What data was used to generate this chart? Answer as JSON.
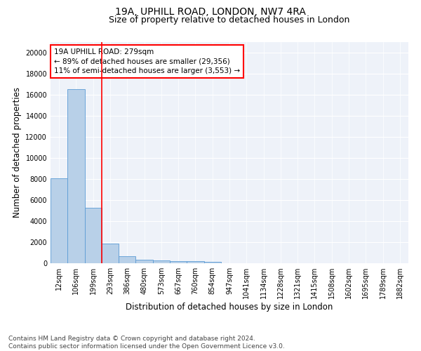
{
  "title": "19A, UPHILL ROAD, LONDON, NW7 4RA",
  "subtitle": "Size of property relative to detached houses in London",
  "xlabel": "Distribution of detached houses by size in London",
  "ylabel": "Number of detached properties",
  "categories": [
    "12sqm",
    "106sqm",
    "199sqm",
    "293sqm",
    "386sqm",
    "480sqm",
    "573sqm",
    "667sqm",
    "760sqm",
    "854sqm",
    "947sqm",
    "1041sqm",
    "1134sqm",
    "1228sqm",
    "1321sqm",
    "1415sqm",
    "1508sqm",
    "1602sqm",
    "1695sqm",
    "1789sqm",
    "1882sqm"
  ],
  "values": [
    8100,
    16500,
    5300,
    1850,
    650,
    340,
    275,
    220,
    190,
    160,
    0,
    0,
    0,
    0,
    0,
    0,
    0,
    0,
    0,
    0,
    0
  ],
  "bar_color": "#b8d0e8",
  "bar_edge_color": "#5b9bd5",
  "vline_x": 2.5,
  "vline_color": "red",
  "annotation_line1": "19A UPHILL ROAD: 279sqm",
  "annotation_line2": "← 89% of detached houses are smaller (29,356)",
  "annotation_line3": "11% of semi-detached houses are larger (3,553) →",
  "ylim": [
    0,
    21000
  ],
  "yticks": [
    0,
    2000,
    4000,
    6000,
    8000,
    10000,
    12000,
    14000,
    16000,
    18000,
    20000
  ],
  "footnote": "Contains HM Land Registry data © Crown copyright and database right 2024.\nContains public sector information licensed under the Open Government Licence v3.0.",
  "background_color": "#eef2f9",
  "grid_color": "#ffffff",
  "title_fontsize": 10,
  "subtitle_fontsize": 9,
  "axis_label_fontsize": 8.5,
  "tick_fontsize": 7,
  "annotation_fontsize": 7.5,
  "footnote_fontsize": 6.5
}
